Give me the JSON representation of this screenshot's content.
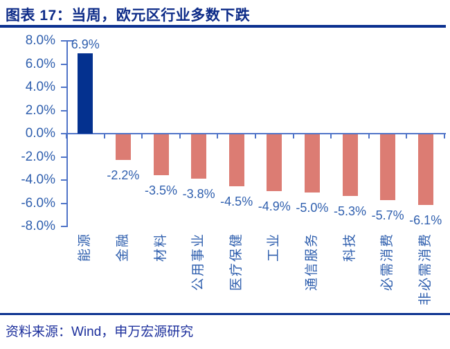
{
  "figure": {
    "title": "图表 17：当周，欧元区行业多数下跌",
    "source": "资料来源：Wind，申万宏源研究"
  },
  "colors": {
    "navy": "#0a308f",
    "title_navy": "#0d2b88",
    "footer_blue": "#1c2f9c",
    "bar_positive": "#04318f",
    "bar_negative": "#dc7c73",
    "axis_line": "#4f74c8",
    "text_blue": "#2f5fae"
  },
  "chart_data": {
    "type": "bar",
    "title": "图表 17：当周，欧元区行业多数下跌",
    "categories": [
      "能源",
      "金融",
      "材料",
      "公用事业",
      "医疗保健",
      "工业",
      "通信服务",
      "科技",
      "必需消费",
      "非必需消费"
    ],
    "values": [
      6.9,
      -2.2,
      -3.5,
      -3.8,
      -4.5,
      -4.9,
      -5.0,
      -5.3,
      -5.7,
      -6.1
    ],
    "labels": [
      "6.9%",
      "-2.2%",
      "-3.5%",
      "-3.8%",
      "-4.5%",
      "-4.9%",
      "-5.0%",
      "-5.3%",
      "-5.7%",
      "-6.1%"
    ],
    "unit": "%",
    "ylim": [
      -8,
      8
    ],
    "ytick_values": [
      8,
      6,
      4,
      2,
      0,
      -2,
      -4,
      -6,
      -8
    ],
    "ytick_labels": [
      "8.0%",
      "6.0%",
      "4.0%",
      "2.0%",
      "0.0%",
      "-2.0%",
      "-4.0%",
      "-6.0%",
      "-8.0%"
    ],
    "grid": false,
    "legend": false,
    "source": "资料来源：Wind，申万宏源研究"
  }
}
